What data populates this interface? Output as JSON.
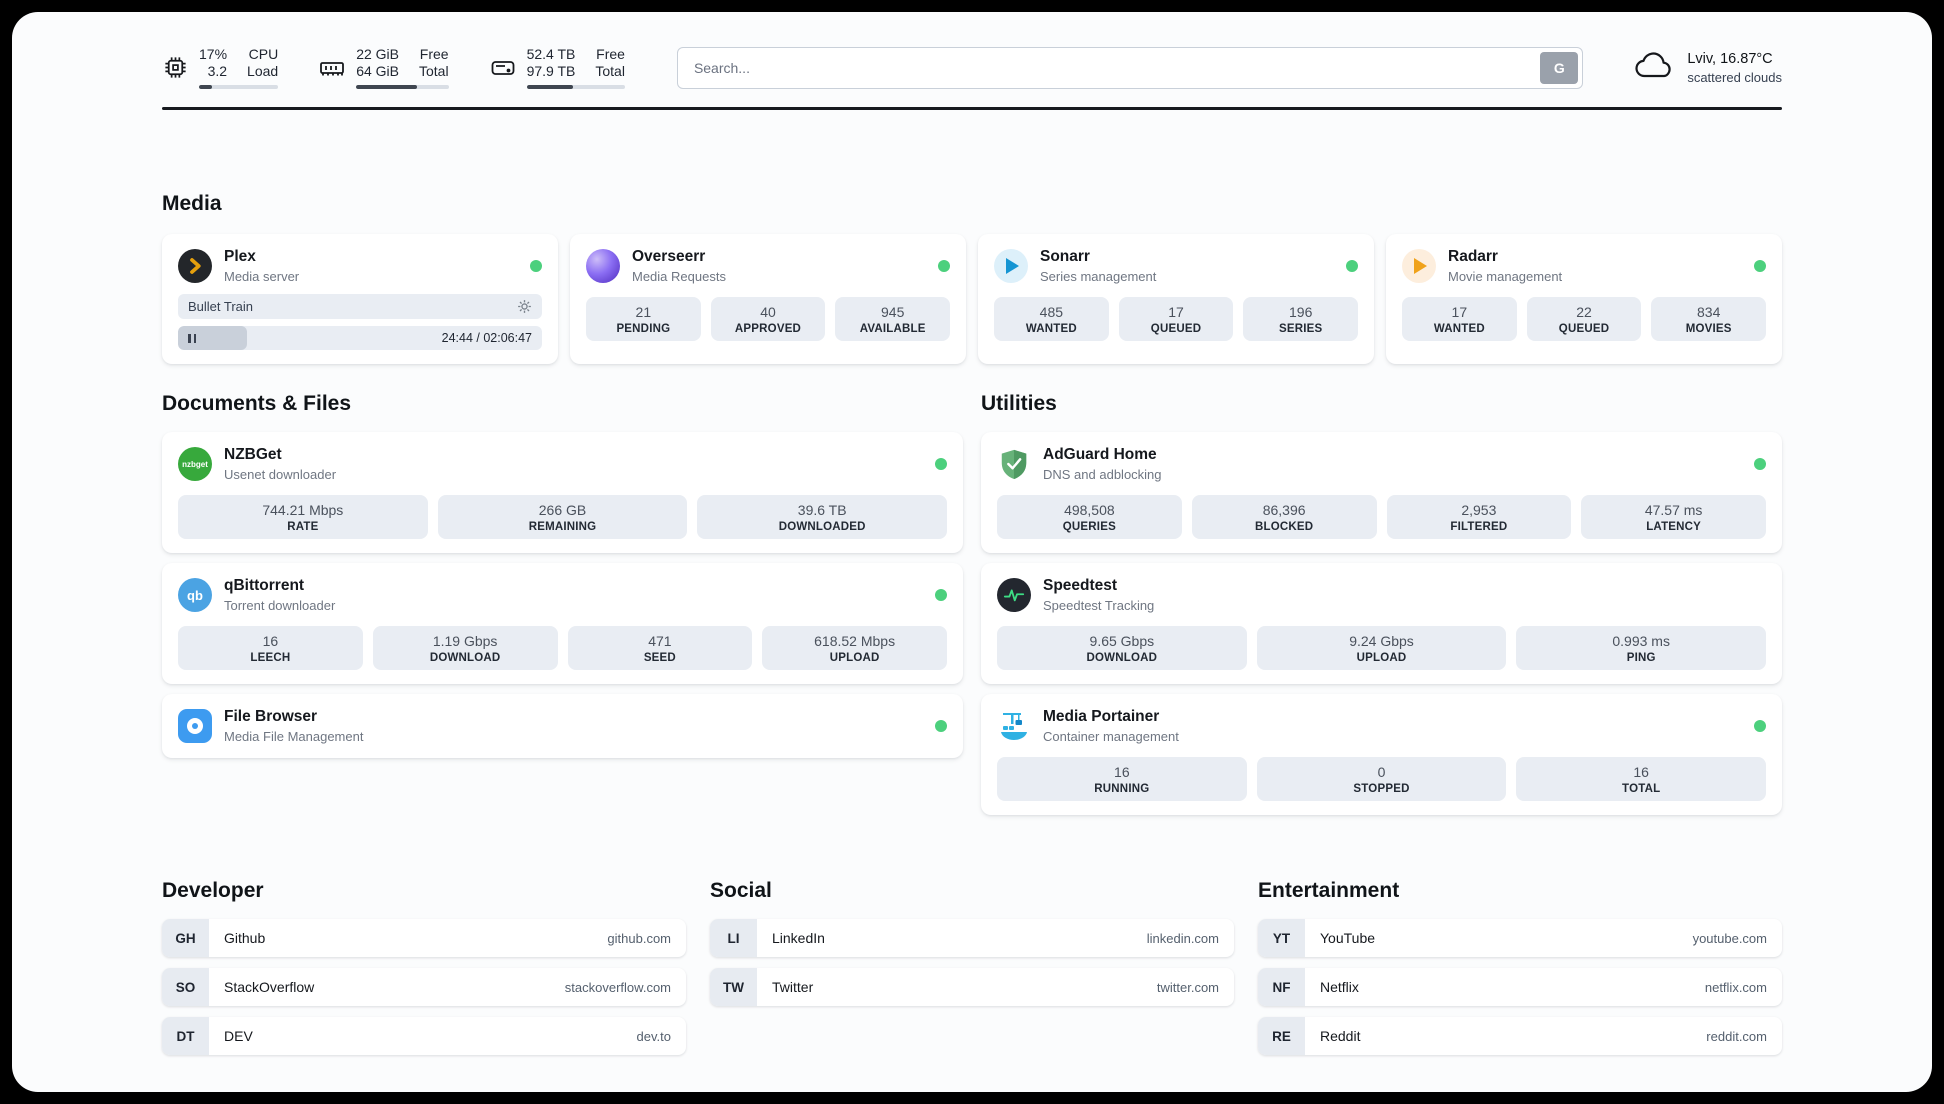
{
  "topbar": {
    "cpu": {
      "percent": "17%",
      "load": "3.2",
      "label_top": "CPU",
      "label_bottom": "Load",
      "bar_percent": 17
    },
    "ram": {
      "free": "22 GiB",
      "total": "64 GiB",
      "label_top": "Free",
      "label_bottom": "Total",
      "bar_percent": 66
    },
    "disk": {
      "free": "52.4 TB",
      "total": "97.9 TB",
      "label_top": "Free",
      "label_bottom": "Total",
      "bar_percent": 47
    },
    "search": {
      "placeholder": "Search...",
      "button_label": "G"
    },
    "weather": {
      "location": "Lviv, 16.87°C",
      "condition": "scattered clouds"
    }
  },
  "colors": {
    "status_online": "#4cd07d",
    "accent_dark": "#171a1f"
  },
  "sections": {
    "media": {
      "title": "Media",
      "cards": [
        {
          "name": "Plex",
          "subtitle": "Media server",
          "player": {
            "title": "Bullet Train",
            "time": "24:44 / 02:06:47",
            "progress_percent": 19
          }
        },
        {
          "name": "Overseerr",
          "subtitle": "Media Requests",
          "stats": [
            {
              "value": "21",
              "label": "PENDING"
            },
            {
              "value": "40",
              "label": "APPROVED"
            },
            {
              "value": "945",
              "label": "AVAILABLE"
            }
          ]
        },
        {
          "name": "Sonarr",
          "subtitle": "Series management",
          "stats": [
            {
              "value": "485",
              "label": "WANTED"
            },
            {
              "value": "17",
              "label": "QUEUED"
            },
            {
              "value": "196",
              "label": "SERIES"
            }
          ]
        },
        {
          "name": "Radarr",
          "subtitle": "Movie management",
          "stats": [
            {
              "value": "17",
              "label": "WANTED"
            },
            {
              "value": "22",
              "label": "QUEUED"
            },
            {
              "value": "834",
              "label": "MOVIES"
            }
          ]
        }
      ]
    },
    "documents": {
      "title": "Documents & Files",
      "cards": [
        {
          "name": "NZBGet",
          "subtitle": "Usenet downloader",
          "icon_text": "nzbget",
          "stats": [
            {
              "value": "744.21 Mbps",
              "label": "RATE"
            },
            {
              "value": "266 GB",
              "label": "REMAINING"
            },
            {
              "value": "39.6 TB",
              "label": "DOWNLOADED"
            }
          ]
        },
        {
          "name": "qBittorrent",
          "subtitle": "Torrent downloader",
          "icon_text": "qb",
          "stats": [
            {
              "value": "16",
              "label": "LEECH"
            },
            {
              "value": "1.19 Gbps",
              "label": "DOWNLOAD"
            },
            {
              "value": "471",
              "label": "SEED"
            },
            {
              "value": "618.52 Mbps",
              "label": "UPLOAD"
            }
          ]
        },
        {
          "name": "File Browser",
          "subtitle": "Media File Management"
        }
      ]
    },
    "utilities": {
      "title": "Utilities",
      "cards": [
        {
          "name": "AdGuard Home",
          "subtitle": "DNS and adblocking",
          "stats": [
            {
              "value": "498,508",
              "label": "QUERIES"
            },
            {
              "value": "86,396",
              "label": "BLOCKED"
            },
            {
              "value": "2,953",
              "label": "FILTERED"
            },
            {
              "value": "47.57 ms",
              "label": "LATENCY"
            }
          ]
        },
        {
          "name": "Speedtest",
          "subtitle": "Speedtest Tracking",
          "stats": [
            {
              "value": "9.65 Gbps",
              "label": "DOWNLOAD"
            },
            {
              "value": "9.24 Gbps",
              "label": "UPLOAD"
            },
            {
              "value": "0.993 ms",
              "label": "PING"
            }
          ]
        },
        {
          "name": "Media Portainer",
          "subtitle": "Container management",
          "stats": [
            {
              "value": "16",
              "label": "RUNNING"
            },
            {
              "value": "0",
              "label": "STOPPED"
            },
            {
              "value": "16",
              "label": "TOTAL"
            }
          ]
        }
      ]
    },
    "developer": {
      "title": "Developer",
      "links": [
        {
          "abbr": "GH",
          "name": "Github",
          "url": "github.com"
        },
        {
          "abbr": "SO",
          "name": "StackOverflow",
          "url": "stackoverflow.com"
        },
        {
          "abbr": "DT",
          "name": "DEV",
          "url": "dev.to"
        }
      ]
    },
    "social": {
      "title": "Social",
      "links": [
        {
          "abbr": "LI",
          "name": "LinkedIn",
          "url": "linkedin.com"
        },
        {
          "abbr": "TW",
          "name": "Twitter",
          "url": "twitter.com"
        }
      ]
    },
    "entertainment": {
      "title": "Entertainment",
      "links": [
        {
          "abbr": "YT",
          "name": "YouTube",
          "url": "youtube.com"
        },
        {
          "abbr": "NF",
          "name": "Netflix",
          "url": "netflix.com"
        },
        {
          "abbr": "RE",
          "name": "Reddit",
          "url": "reddit.com"
        }
      ]
    }
  }
}
